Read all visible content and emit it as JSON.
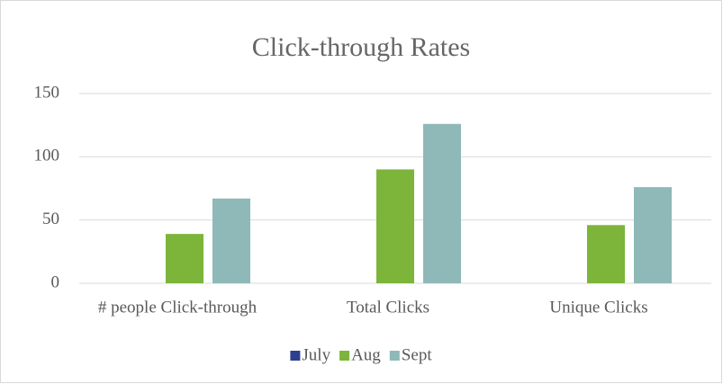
{
  "chart_data": {
    "type": "bar",
    "title": "Click-through Rates",
    "categories": [
      "# people Click-through",
      "Total Clicks",
      "Unique Clicks"
    ],
    "series": [
      {
        "name": "July",
        "color": "#2e3f8f",
        "values": [
          0,
          0,
          0
        ]
      },
      {
        "name": "Aug",
        "color": "#7cb53a",
        "values": [
          39,
          90,
          46
        ]
      },
      {
        "name": "Sept",
        "color": "#8fb8b8",
        "values": [
          67,
          126,
          76
        ]
      }
    ],
    "ylim": [
      0,
      150
    ],
    "yticks": [
      0,
      50,
      100,
      150
    ],
    "grid": true,
    "legend": "bottom"
  }
}
